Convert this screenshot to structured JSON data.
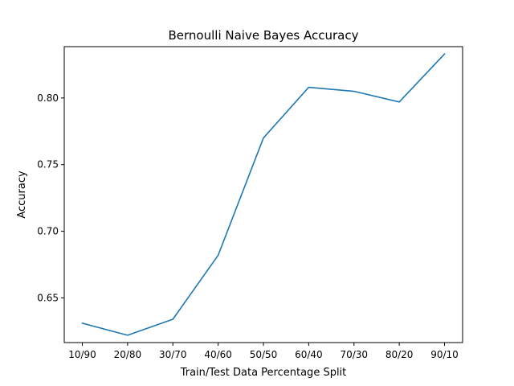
{
  "chart_data": {
    "type": "line",
    "title": "Bernoulli Naive Bayes Accuracy",
    "xlabel": "Train/Test Data Percentage Split",
    "ylabel": "Accuracy",
    "categories": [
      "10/90",
      "20/80",
      "30/70",
      "40/60",
      "50/50",
      "60/40",
      "70/30",
      "80/20",
      "90/10"
    ],
    "series": [
      {
        "values": [
          0.631,
          0.622,
          0.634,
          0.682,
          0.77,
          0.808,
          0.805,
          0.797,
          0.833
        ],
        "color": "#1f77b4"
      }
    ],
    "yticks": [
      0.65,
      0.7,
      0.75,
      0.8
    ],
    "ytick_labels": [
      "0.65",
      "0.70",
      "0.75",
      "0.80"
    ],
    "ylim": [
      0.6165,
      0.8385
    ],
    "grid": false,
    "legend": "none"
  }
}
